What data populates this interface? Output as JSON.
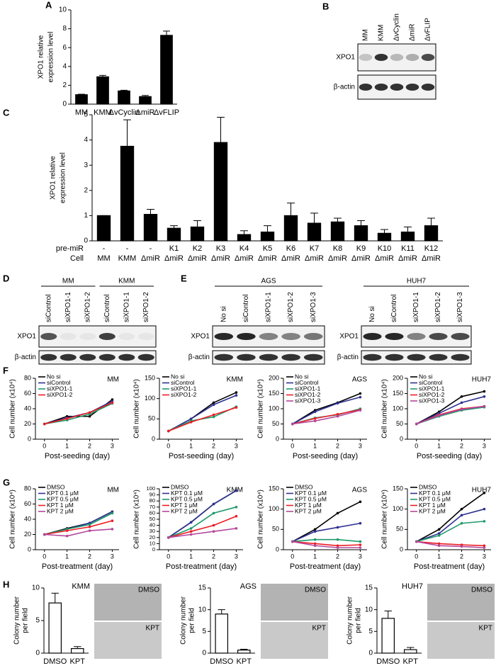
{
  "chart_data": [
    {
      "type": "bar",
      "panel": "A",
      "ylabel": [
        "XPO1 relative",
        "expression level"
      ],
      "categories": [
        "MM",
        "KMM",
        "ΔvCyclin",
        "ΔmiR",
        "ΔvFLIP"
      ],
      "values": [
        1.0,
        2.9,
        1.4,
        0.8,
        7.3
      ],
      "errors": [
        0.05,
        0.15,
        0.08,
        0.12,
        0.45
      ],
      "color": "#000000",
      "ylim": [
        0,
        10
      ],
      "yticks": [
        0,
        2,
        4,
        6,
        8,
        10
      ]
    },
    {
      "type": "bar",
      "panel": "C",
      "ylabel": [
        "XPO1 relative",
        "expression level"
      ],
      "row_labels": [
        "pre-miR",
        "Cell"
      ],
      "pre_miR": [
        "-",
        "-",
        "-",
        "K1",
        "K2",
        "K3",
        "K4",
        "K5",
        "K6",
        "K7",
        "K8",
        "K9",
        "K10",
        "K11",
        "K12"
      ],
      "categories": [
        "MM",
        "KMM",
        "ΔmiR",
        "ΔmiR",
        "ΔmiR",
        "ΔmiR",
        "ΔmiR",
        "ΔmiR",
        "ΔmiR",
        "ΔmiR",
        "ΔmiR",
        "ΔmiR",
        "ΔmiR",
        "ΔmiR",
        "ΔmiR"
      ],
      "values": [
        1.0,
        3.75,
        1.05,
        0.5,
        0.55,
        3.9,
        0.25,
        0.35,
        1.0,
        0.7,
        0.75,
        0.6,
        0.3,
        0.35,
        0.6
      ],
      "errors": [
        0,
        1.05,
        0.2,
        0.1,
        0.25,
        1.0,
        0.15,
        0.25,
        0.5,
        0.4,
        0.15,
        0.2,
        0.15,
        0.2,
        0.3
      ],
      "color": "#000000",
      "ylim": [
        0,
        5
      ],
      "yticks": [
        0,
        1,
        2,
        3,
        4,
        5
      ]
    },
    {
      "type": "line",
      "panel": "F",
      "title": "MM",
      "xlabel": "Post-seeding (day)",
      "ylabel": "Cell number (x10⁴)",
      "x": [
        0,
        1,
        2,
        3
      ],
      "xlim": [
        -0.4,
        3.3
      ],
      "xticks": [
        0,
        1,
        2,
        3
      ],
      "ylim": [
        0,
        80
      ],
      "yticks": [
        0,
        20,
        40,
        60,
        80
      ],
      "series": [
        {
          "name": "No si",
          "color": "#000000",
          "values": [
            20,
            30,
            30,
            52
          ]
        },
        {
          "name": "siControl",
          "color": "#2e3192",
          "values": [
            20,
            28,
            35,
            50
          ]
        },
        {
          "name": "siXPO1-1",
          "color": "#1f9a6a",
          "values": [
            20,
            25,
            33,
            47
          ]
        },
        {
          "name": "siXPO1-2",
          "color": "#ed1c24",
          "values": [
            20,
            27,
            35,
            48
          ]
        }
      ]
    },
    {
      "type": "line",
      "title": "KMM",
      "xlabel": "Post-seeding (day)",
      "ylabel": "Cell number (x10⁴)",
      "x": [
        0,
        1,
        2,
        3
      ],
      "xlim": [
        -0.4,
        3.3
      ],
      "xticks": [
        0,
        1,
        2,
        3
      ],
      "ylim": [
        0,
        150
      ],
      "yticks": [
        0,
        50,
        100,
        150
      ],
      "series": [
        {
          "name": "No si",
          "color": "#000000",
          "values": [
            20,
            50,
            90,
            115
          ]
        },
        {
          "name": "siControl",
          "color": "#2e3192",
          "values": [
            20,
            50,
            85,
            108
          ]
        },
        {
          "name": "siXPO1-1",
          "color": "#1f9a6a",
          "values": [
            20,
            45,
            55,
            80
          ]
        },
        {
          "name": "siXPO1-2",
          "color": "#ed1c24",
          "values": [
            20,
            42,
            60,
            78
          ]
        }
      ]
    },
    {
      "type": "line",
      "title": "AGS",
      "xlabel": "Post-seeding (day)",
      "ylabel": "Cell number (x10⁴)",
      "x": [
        0,
        1,
        2,
        3
      ],
      "xlim": [
        -0.4,
        3.3
      ],
      "xticks": [
        0,
        1,
        2,
        3
      ],
      "ylim": [
        0,
        200
      ],
      "yticks": [
        0,
        50,
        100,
        150,
        200
      ],
      "series": [
        {
          "name": "No si",
          "color": "#000000",
          "values": [
            50,
            95,
            120,
            150
          ]
        },
        {
          "name": "siControl",
          "color": "#2e3192",
          "values": [
            50,
            90,
            118,
            138
          ]
        },
        {
          "name": "siXPO1-1",
          "color": "#1f9a6a",
          "values": [
            50,
            70,
            80,
            100
          ]
        },
        {
          "name": "siXPO1-2",
          "color": "#ed1c24",
          "values": [
            50,
            68,
            82,
            97
          ]
        },
        {
          "name": "siXPO1-3",
          "color": "#b4479b",
          "values": [
            50,
            60,
            75,
            95
          ]
        }
      ]
    },
    {
      "type": "line",
      "title": "HUH7",
      "xlabel": "Post-seeding (day)",
      "ylabel": "Cell number (x10⁴)",
      "x": [
        0,
        1,
        2,
        3
      ],
      "xlim": [
        -0.4,
        3.3
      ],
      "xticks": [
        0,
        1,
        2,
        3
      ],
      "ylim": [
        0,
        200
      ],
      "yticks": [
        0,
        50,
        100,
        150,
        200
      ],
      "series": [
        {
          "name": "No si",
          "color": "#000000",
          "values": [
            50,
            90,
            140,
            157
          ]
        },
        {
          "name": "siControl",
          "color": "#2e3192",
          "values": [
            50,
            85,
            120,
            140
          ]
        },
        {
          "name": "siXPO1-1",
          "color": "#1f9a6a",
          "values": [
            50,
            75,
            95,
            105
          ]
        },
        {
          "name": "siXPO1-2",
          "color": "#ed1c24",
          "values": [
            50,
            80,
            100,
            108
          ]
        },
        {
          "name": "siXPO1-3",
          "color": "#b4479b",
          "values": [
            50,
            78,
            98,
            108
          ]
        }
      ]
    },
    {
      "type": "line",
      "panel": "G",
      "title": "MM",
      "xlabel": "Post-treatment (day)",
      "ylabel": "Cell number (x10⁴)",
      "x": [
        0,
        1,
        2,
        3
      ],
      "xlim": [
        -0.4,
        3.3
      ],
      "xticks": [
        0,
        1,
        2,
        3
      ],
      "ylim": [
        0,
        80
      ],
      "yticks": [
        0,
        20,
        40,
        60,
        80
      ],
      "series": [
        {
          "name": "DMSO",
          "color": "#000000",
          "values": [
            20,
            28,
            35,
            50
          ]
        },
        {
          "name": "KPT 0.1 μM",
          "color": "#2e3192",
          "values": [
            20,
            27,
            35,
            50
          ]
        },
        {
          "name": "KPT 0.5 μM",
          "color": "#1f9a6a",
          "values": [
            20,
            27,
            33,
            48
          ]
        },
        {
          "name": "KPT 1 μM",
          "color": "#ed1c24",
          "values": [
            20,
            25,
            30,
            38
          ]
        },
        {
          "name": "KPT 2 μM",
          "color": "#b4479b",
          "values": [
            20,
            18,
            25,
            27
          ]
        }
      ]
    },
    {
      "type": "line",
      "title": "KMM",
      "xlabel": "Post-treatment (day)",
      "ylabel": "Cell number (x10⁴)",
      "x": [
        0,
        1,
        2,
        3
      ],
      "xlim": [
        -0.4,
        3.3
      ],
      "xticks": [
        0,
        1,
        2,
        3
      ],
      "ylim": [
        0,
        100
      ],
      "yticks": [
        0,
        10,
        20,
        30,
        40,
        50,
        60,
        70,
        80,
        90,
        100
      ],
      "series": [
        {
          "name": "DMSO",
          "color": "#000000",
          "values": [
            20,
            45,
            75,
            97
          ]
        },
        {
          "name": "KPT 0.1 μM",
          "color": "#2e3192",
          "values": [
            20,
            45,
            75,
            97
          ]
        },
        {
          "name": "KPT 0.5 μM",
          "color": "#1f9a6a",
          "values": [
            20,
            35,
            60,
            70
          ]
        },
        {
          "name": "KPT 1 μM",
          "color": "#ed1c24",
          "values": [
            20,
            30,
            40,
            55
          ]
        },
        {
          "name": "KPT 2 μM",
          "color": "#b4479b",
          "values": [
            20,
            25,
            30,
            35
          ]
        }
      ]
    },
    {
      "type": "line",
      "title": "AGS",
      "xlabel": "Post-treatment (day)",
      "ylabel": "Cell number (x10⁴)",
      "x": [
        0,
        1,
        2,
        3
      ],
      "xlim": [
        -0.4,
        3.3
      ],
      "xticks": [
        0,
        1,
        2,
        3
      ],
      "ylim": [
        0,
        150
      ],
      "yticks": [
        0,
        50,
        100,
        150
      ],
      "series": [
        {
          "name": "DMSO",
          "color": "#000000",
          "values": [
            20,
            50,
            90,
            118
          ]
        },
        {
          "name": "KPT 0.1 μM",
          "color": "#2e3192",
          "values": [
            20,
            45,
            55,
            65
          ]
        },
        {
          "name": "KPT 0.5 μM",
          "color": "#1f9a6a",
          "values": [
            20,
            25,
            25,
            20
          ]
        },
        {
          "name": "KPT 1 μM",
          "color": "#ed1c24",
          "values": [
            20,
            15,
            10,
            12
          ]
        },
        {
          "name": "KPT 2 μM",
          "color": "#b4479b",
          "values": [
            20,
            10,
            5,
            5
          ]
        }
      ]
    },
    {
      "type": "line",
      "title": "HUH7",
      "xlabel": "Post-treatment (day)",
      "ylabel": "Cell number (x10⁴)",
      "x": [
        0,
        1,
        2,
        3
      ],
      "xlim": [
        -0.4,
        3.3
      ],
      "xticks": [
        0,
        1,
        2,
        3
      ],
      "ylim": [
        0,
        150
      ],
      "yticks": [
        0,
        50,
        100,
        150
      ],
      "series": [
        {
          "name": "DMSO",
          "color": "#000000",
          "values": [
            20,
            50,
            100,
            140
          ]
        },
        {
          "name": "KPT 0.1 μM",
          "color": "#2e3192",
          "values": [
            20,
            40,
            85,
            100
          ]
        },
        {
          "name": "KPT 0.5 μM",
          "color": "#1f9a6a",
          "values": [
            20,
            35,
            65,
            70
          ]
        },
        {
          "name": "KPT 1 μM",
          "color": "#ed1c24",
          "values": [
            20,
            15,
            12,
            10
          ]
        },
        {
          "name": "KPT 2 μM",
          "color": "#b4479b",
          "values": [
            20,
            10,
            8,
            5
          ]
        }
      ]
    },
    {
      "type": "bar",
      "panel": "H",
      "title": "KMM",
      "ylabel": [
        "Colony number",
        "per field"
      ],
      "categories": [
        "DMSO",
        "KPT"
      ],
      "values": [
        7.7,
        0.7
      ],
      "errors": [
        1.5,
        0.3
      ],
      "color": "#ffffff",
      "ylim": [
        0,
        10
      ],
      "yticks": [
        0,
        5,
        10
      ]
    },
    {
      "type": "bar",
      "title": "AGS",
      "ylabel": [
        "Colony number",
        "per field"
      ],
      "categories": [
        "DMSO",
        "KPT"
      ],
      "values": [
        9,
        0.7
      ],
      "errors": [
        1,
        0.2
      ],
      "color": "#ffffff",
      "ylim": [
        0,
        15
      ],
      "yticks": [
        0,
        5,
        10,
        15
      ]
    },
    {
      "type": "bar",
      "title": "HUH7",
      "ylabel": [
        "Colony number",
        "per field"
      ],
      "categories": [
        "DMSO",
        "KPT"
      ],
      "values": [
        8,
        0.8
      ],
      "errors": [
        1.7,
        0.5
      ],
      "color": "#ffffff",
      "ylim": [
        0,
        15
      ],
      "yticks": [
        0,
        5,
        10,
        15
      ]
    }
  ],
  "blots": [
    {
      "panel": "B",
      "lanes": [
        "MM",
        "KMM",
        "ΔvCyclin",
        "ΔmiR",
        "ΔvFLIP"
      ],
      "rows": [
        "XPO1",
        "β-actin"
      ]
    },
    {
      "panel": "D",
      "groups": [
        {
          "name": "MM",
          "lanes": [
            "siControl",
            "siXPO1-1",
            "siXPO1-2"
          ]
        },
        {
          "name": "KMM",
          "lanes": [
            "siControl",
            "siXPO1-1",
            "siXPO1-2"
          ]
        }
      ],
      "rows": [
        "XPO1",
        "β-actin"
      ]
    },
    {
      "panel": "E",
      "groups": [
        {
          "name": "AGS",
          "lanes": [
            "No si",
            "siControl",
            "siXPO1-1",
            "siXPO1-2",
            "siXPO1-3"
          ]
        }
      ],
      "rows": [
        "XPO1",
        "β-actin"
      ]
    },
    {
      "groups": [
        {
          "name": "HUH7",
          "lanes": [
            "No si",
            "siControl",
            "siXPO1-1",
            "siXPO1-2",
            "siXPO1-3"
          ]
        }
      ],
      "rows": [
        "XPO1",
        "β-actin"
      ]
    }
  ],
  "micrographs": [
    {
      "labels": [
        "DMSO",
        "KPT"
      ]
    },
    {
      "labels": [
        "DMSO",
        "KPT"
      ]
    },
    {
      "labels": [
        "DMSO",
        "KPT"
      ]
    }
  ]
}
